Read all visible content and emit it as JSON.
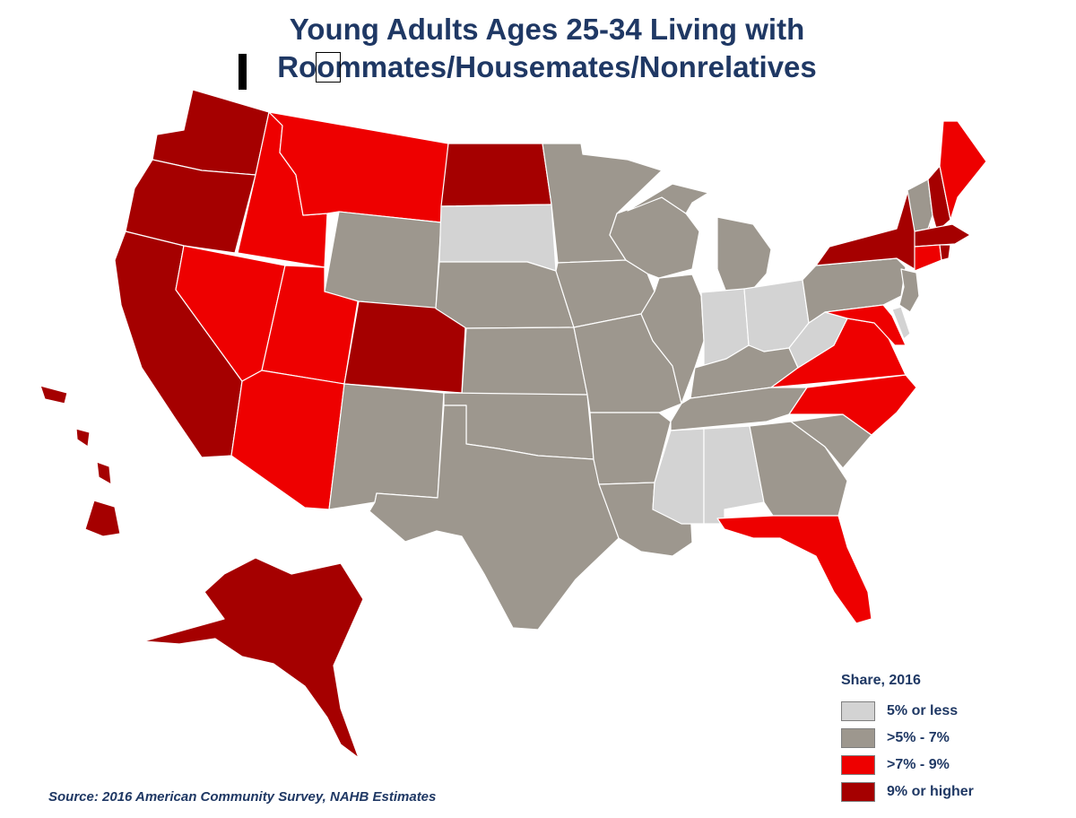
{
  "title": {
    "line1": "Young Adults Ages 25-34 Living with",
    "line2": "Roommates/Housemates/Nonrelatives"
  },
  "legend": {
    "title": "Share, 2016",
    "items": [
      {
        "label": "5% or less",
        "color": "#d3d3d3"
      },
      {
        "label": ">5% - 7%",
        "color": "#9d978e"
      },
      {
        "label": ">7% - 9%",
        "color": "#ee0000"
      },
      {
        "label": "9% or higher",
        "color": "#a50000"
      }
    ]
  },
  "source": "Source: 2016 American Community Survey, NAHB Estimates",
  "states": {
    "WA": 4,
    "OR": 4,
    "CA": 4,
    "ID": 3,
    "MT": 3,
    "NV": 3,
    "UT": 3,
    "AZ": 3,
    "WY": 2,
    "CO": 4,
    "NM": 2,
    "ND": 4,
    "SD": 1,
    "NE": 2,
    "KS": 2,
    "OK": 2,
    "TX": 2,
    "MN": 2,
    "IA": 2,
    "MO": 2,
    "AR": 2,
    "LA": 2,
    "WI": 2,
    "IL": 2,
    "MI": 2,
    "IN": 1,
    "OH": 1,
    "KY": 2,
    "TN": 2,
    "MS": 1,
    "AL": 1,
    "GA": 2,
    "FL": 3,
    "SC": 2,
    "NC": 3,
    "VA": 3,
    "WV": 1,
    "PA": 2,
    "NY": 4,
    "VT": 2,
    "NH": 4,
    "ME": 3,
    "MA": 4,
    "CT": 3,
    "RI": 4,
    "NJ": 2,
    "DE": 1,
    "MD": 3,
    "AK": 4,
    "HI": 4
  }
}
